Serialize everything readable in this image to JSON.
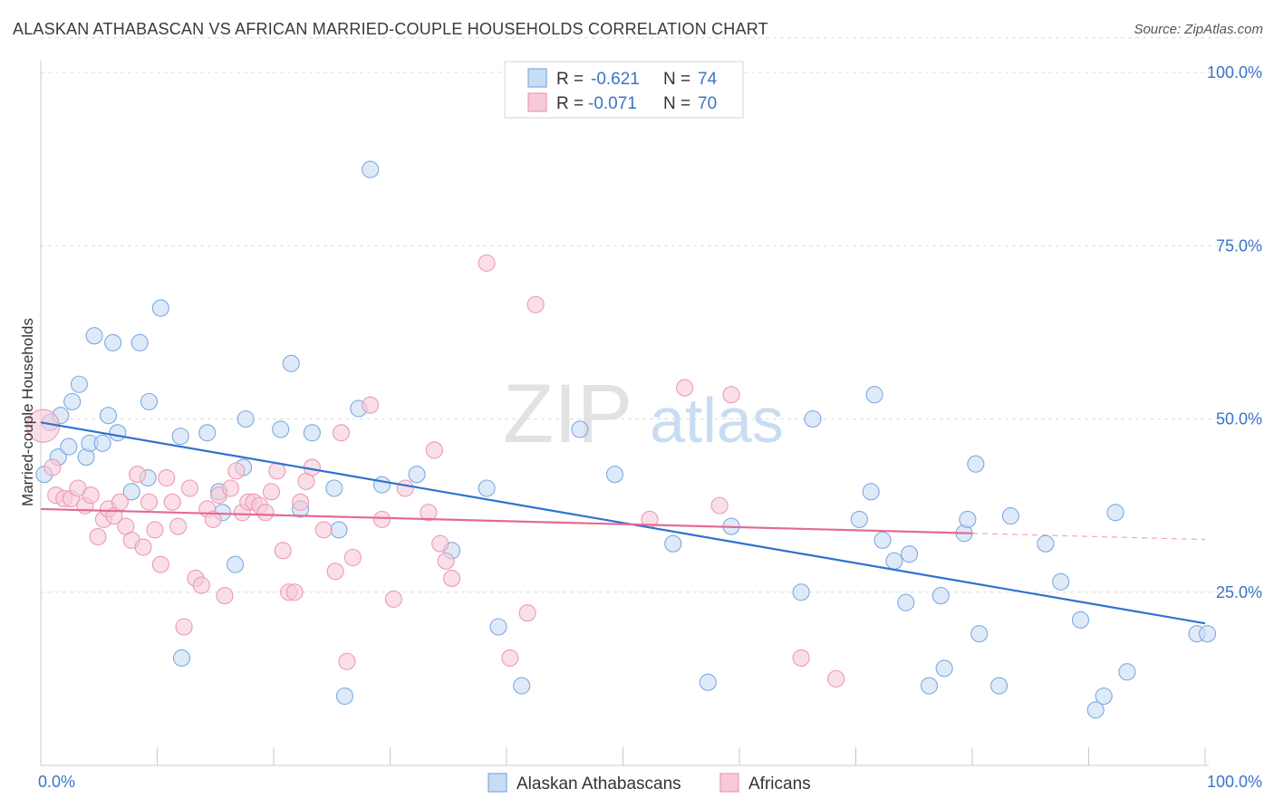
{
  "header": {
    "title": "ALASKAN ATHABASCAN VS AFRICAN MARRIED-COUPLE HOUSEHOLDS CORRELATION CHART",
    "source": "Source: ZipAtlas.com"
  },
  "watermark": {
    "zip": "ZIP",
    "atlas": "atlas"
  },
  "stats_legend": [
    {
      "r_label": "R =",
      "r_value": "-0.621",
      "n_label": "N =",
      "n_value": "74"
    },
    {
      "r_label": "R =",
      "r_value": "-0.071",
      "n_label": "N =",
      "n_value": "70"
    }
  ],
  "colors": {
    "blue_fill": "#c9dcf5",
    "blue_stroke": "#7aaae0",
    "blue_line": "#2f72d0",
    "pink_fill": "#f7cad8",
    "pink_stroke": "#ec9ab5",
    "pink_line": "#e46a93",
    "value_text": "#3b74c8",
    "grid": "#dcdcdc"
  },
  "chart_data": {
    "type": "scatter",
    "title": "ALASKAN ATHABASCAN VS AFRICAN MARRIED-COUPLE HOUSEHOLDS CORRELATION CHART",
    "xlabel": "",
    "ylabel": "Married-couple Households",
    "xlim": [
      0,
      100
    ],
    "ylim": [
      0,
      105
    ],
    "x_tick_labels": [
      "0.0%",
      "100.0%"
    ],
    "y_ticks": [
      25,
      50,
      75,
      100
    ],
    "y_tick_labels": [
      "25.0%",
      "50.0%",
      "75.0%",
      "100.0%"
    ],
    "grid": true,
    "legend_position": "bottom-center",
    "series": [
      {
        "name": "Alaskan Athabascans",
        "color": "#7aaae0",
        "trend": {
          "x": [
            0,
            100
          ],
          "y": [
            49.5,
            20.5
          ]
        },
        "points": [
          [
            0.3,
            42
          ],
          [
            0.8,
            49.5
          ],
          [
            1.5,
            44.5
          ],
          [
            1.7,
            50.5
          ],
          [
            2.4,
            46
          ],
          [
            2.7,
            52.5
          ],
          [
            3.3,
            55
          ],
          [
            3.9,
            44.5
          ],
          [
            4.2,
            46.5
          ],
          [
            4.6,
            62
          ],
          [
            5.3,
            46.5
          ],
          [
            5.8,
            50.5
          ],
          [
            6.2,
            61
          ],
          [
            6.6,
            48
          ],
          [
            7.8,
            39.5
          ],
          [
            8.5,
            61
          ],
          [
            9.2,
            41.5
          ],
          [
            9.3,
            52.5
          ],
          [
            10.3,
            66
          ],
          [
            12,
            47.5
          ],
          [
            12.1,
            15.5
          ],
          [
            14.3,
            48
          ],
          [
            15.3,
            39.5
          ],
          [
            15.6,
            36.5
          ],
          [
            16.7,
            29
          ],
          [
            17.4,
            43
          ],
          [
            17.6,
            50
          ],
          [
            20.6,
            48.5
          ],
          [
            21.5,
            58
          ],
          [
            22.3,
            37
          ],
          [
            23.3,
            48
          ],
          [
            25.2,
            40
          ],
          [
            25.6,
            34
          ],
          [
            26.1,
            10
          ],
          [
            27.3,
            51.5
          ],
          [
            28.3,
            86
          ],
          [
            29.3,
            40.5
          ],
          [
            32.3,
            42
          ],
          [
            35.3,
            31
          ],
          [
            38.3,
            40
          ],
          [
            39.3,
            20
          ],
          [
            41.3,
            11.5
          ],
          [
            46.3,
            48.5
          ],
          [
            49.3,
            42
          ],
          [
            54.3,
            32
          ],
          [
            57.3,
            12
          ],
          [
            59.3,
            34.5
          ],
          [
            65.3,
            25
          ],
          [
            66.3,
            50
          ],
          [
            70.3,
            35.5
          ],
          [
            71.3,
            39.5
          ],
          [
            71.6,
            53.5
          ],
          [
            72.3,
            32.5
          ],
          [
            73.3,
            29.5
          ],
          [
            74.3,
            23.5
          ],
          [
            74.6,
            30.5
          ],
          [
            76.3,
            11.5
          ],
          [
            77.3,
            24.5
          ],
          [
            77.6,
            14
          ],
          [
            79.3,
            33.5
          ],
          [
            79.6,
            35.5
          ],
          [
            80.3,
            43.5
          ],
          [
            80.6,
            19
          ],
          [
            82.3,
            11.5
          ],
          [
            83.3,
            36
          ],
          [
            86.3,
            32
          ],
          [
            87.6,
            26.5
          ],
          [
            89.3,
            21
          ],
          [
            90.6,
            8
          ],
          [
            91.3,
            10
          ],
          [
            92.3,
            36.5
          ],
          [
            93.3,
            13.5
          ],
          [
            99.3,
            19
          ],
          [
            100.2,
            19
          ]
        ]
      },
      {
        "name": "Africans",
        "color": "#ec9ab5",
        "trend": {
          "x": [
            0,
            80
          ],
          "y": [
            37,
            33.5
          ]
        },
        "trend_dashed": {
          "x": [
            80,
            100
          ],
          "y": [
            33.5,
            32.6
          ]
        },
        "points": [
          [
            0.2,
            49
          ],
          [
            1.0,
            43
          ],
          [
            1.3,
            39
          ],
          [
            2.0,
            38.5
          ],
          [
            2.6,
            38.5
          ],
          [
            3.2,
            40
          ],
          [
            3.8,
            37.5
          ],
          [
            4.3,
            39
          ],
          [
            4.9,
            33
          ],
          [
            5.4,
            35.5
          ],
          [
            5.8,
            37
          ],
          [
            6.3,
            36
          ],
          [
            6.8,
            38
          ],
          [
            7.3,
            34.5
          ],
          [
            7.8,
            32.5
          ],
          [
            8.3,
            42
          ],
          [
            8.8,
            31.5
          ],
          [
            9.3,
            38
          ],
          [
            9.8,
            34
          ],
          [
            10.3,
            29
          ],
          [
            10.8,
            41.5
          ],
          [
            11.3,
            38
          ],
          [
            11.8,
            34.5
          ],
          [
            12.3,
            20
          ],
          [
            12.8,
            40
          ],
          [
            13.3,
            27
          ],
          [
            13.8,
            26
          ],
          [
            14.3,
            37
          ],
          [
            14.8,
            35.5
          ],
          [
            15.3,
            39
          ],
          [
            15.8,
            24.5
          ],
          [
            16.3,
            40
          ],
          [
            16.8,
            42.5
          ],
          [
            17.3,
            36.5
          ],
          [
            17.8,
            38
          ],
          [
            18.3,
            38
          ],
          [
            18.8,
            37.5
          ],
          [
            19.3,
            36.5
          ],
          [
            19.8,
            39.5
          ],
          [
            20.3,
            42.5
          ],
          [
            20.8,
            31
          ],
          [
            21.3,
            25
          ],
          [
            21.8,
            25
          ],
          [
            22.3,
            38
          ],
          [
            22.8,
            41
          ],
          [
            23.3,
            43
          ],
          [
            24.3,
            34
          ],
          [
            25.3,
            28
          ],
          [
            25.8,
            48
          ],
          [
            26.3,
            15
          ],
          [
            26.8,
            30
          ],
          [
            28.3,
            52
          ],
          [
            29.3,
            35.5
          ],
          [
            30.3,
            24
          ],
          [
            31.3,
            40
          ],
          [
            33.3,
            36.5
          ],
          [
            33.8,
            45.5
          ],
          [
            34.3,
            32
          ],
          [
            34.8,
            29.5
          ],
          [
            35.3,
            27
          ],
          [
            38.3,
            72.5
          ],
          [
            40.3,
            15.5
          ],
          [
            41.8,
            22
          ],
          [
            42.5,
            66.5
          ],
          [
            52.3,
            35.5
          ],
          [
            55.3,
            54.5
          ],
          [
            58.3,
            37.5
          ],
          [
            59.3,
            53.5
          ],
          [
            65.3,
            15.5
          ],
          [
            68.3,
            12.5
          ]
        ]
      }
    ]
  },
  "bottom_legend": [
    {
      "label": "Alaskan Athabascans",
      "color": "blue"
    },
    {
      "label": "Africans",
      "color": "pink"
    }
  ]
}
